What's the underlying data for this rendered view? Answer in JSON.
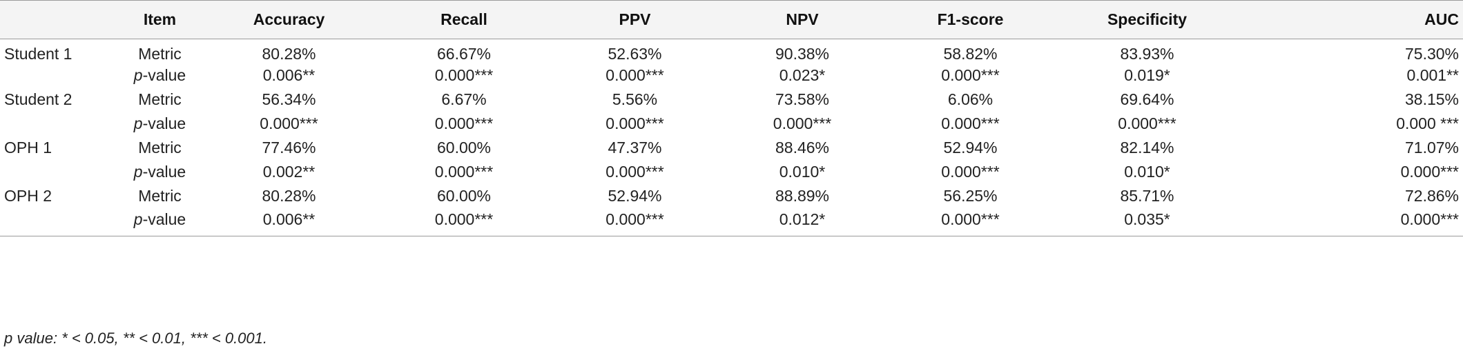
{
  "table": {
    "headers": [
      "",
      "Item",
      "Accuracy",
      "Recall",
      "PPV",
      "NPV",
      "F1-score",
      "Specificity",
      "AUC"
    ],
    "groups": [
      {
        "name": "Student 1",
        "metric_label": "Metric",
        "pvalue_prefix": "p",
        "pvalue_suffix": "-value",
        "metric": [
          "80.28%",
          "66.67%",
          "52.63%",
          "90.38%",
          "58.82%",
          "83.93%",
          "75.30%"
        ],
        "pvalue": [
          "0.006**",
          "0.000***",
          "0.000***",
          "0.023*",
          "0.000***",
          "0.019*",
          "0.001**"
        ]
      },
      {
        "name": "Student 2",
        "metric_label": "Metric",
        "pvalue_prefix": "p",
        "pvalue_suffix": "-value",
        "metric": [
          "56.34%",
          "6.67%",
          "5.56%",
          "73.58%",
          "6.06%",
          "69.64%",
          "38.15%"
        ],
        "pvalue": [
          "0.000***",
          "0.000***",
          "0.000***",
          "0.000***",
          "0.000***",
          "0.000***",
          "0.000 ***"
        ]
      },
      {
        "name": "OPH 1",
        "metric_label": "Metric",
        "pvalue_prefix": "p",
        "pvalue_suffix": "-value",
        "metric": [
          "77.46%",
          "60.00%",
          "47.37%",
          "88.46%",
          "52.94%",
          "82.14%",
          "71.07%"
        ],
        "pvalue": [
          "0.002**",
          "0.000***",
          "0.000***",
          "0.010*",
          "0.000***",
          "0.010*",
          "0.000***"
        ]
      },
      {
        "name": "OPH 2",
        "metric_label": "Metric",
        "pvalue_prefix": "p",
        "pvalue_suffix": "-value",
        "metric": [
          "80.28%",
          "60.00%",
          "52.94%",
          "88.89%",
          "56.25%",
          "85.71%",
          "72.86%"
        ],
        "pvalue": [
          "0.006**",
          "0.000***",
          "0.000***",
          "0.012*",
          "0.000***",
          "0.035*",
          "0.000***"
        ]
      }
    ]
  },
  "footnote": "p value: * < 0.05, ** < 0.01, *** < 0.001."
}
